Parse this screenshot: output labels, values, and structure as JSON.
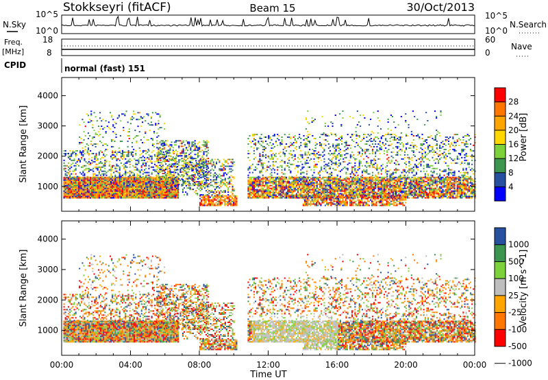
{
  "header": {
    "station": "Stokkseyri (fitACF)",
    "beam": "Beam 15",
    "date": "30/Oct/2013"
  },
  "top_panels": {
    "nsky": {
      "label": "N.Sky",
      "ticks": [
        "10^5",
        "10^0"
      ],
      "right_ticks": [
        "10^5",
        "10^0"
      ],
      "right_label": "N.Search"
    },
    "freq": {
      "label_line1": "Freq.",
      "label_line2": "[MHz]",
      "ticks": [
        "18",
        "8"
      ],
      "right_ticks": [
        "60",
        "0"
      ],
      "right_label": "Nave"
    },
    "cpid": {
      "label": "CPID",
      "value": "normal (fast) 151"
    }
  },
  "chart_data": [
    {
      "type": "heatmap",
      "panel": "power",
      "ylabel": "Slant Range [km]",
      "yticks": [
        "1000",
        "2000",
        "3000",
        "4000"
      ],
      "ylim": [
        180,
        4600
      ],
      "xlim_hours": [
        0,
        24
      ],
      "xticks": [
        "00:00",
        "04:00",
        "08:00",
        "12:00",
        "16:00",
        "20:00",
        "00:00"
      ],
      "colorbar_label": "Power [dB]",
      "colorbar_ticks": [
        "28",
        "24",
        "20",
        "16",
        "12",
        "8",
        "4"
      ],
      "colorbar_colors": [
        "#ff0000",
        "#ff7700",
        "#ffa500",
        "#ffd700",
        "#7dd23c",
        "#3c9650",
        "#2850a0",
        "#0000ff"
      ],
      "scatter_regions": [
        {
          "t": [
            0.1,
            6.8
          ],
          "r": [
            350,
            2200
          ],
          "level": "mid-high"
        },
        {
          "t": [
            4.5,
            10.2
          ],
          "r": [
            350,
            3500
          ],
          "level": "mid"
        },
        {
          "t": [
            10.6,
            24.0
          ],
          "r": [
            350,
            2700
          ],
          "level": "mid-high"
        }
      ]
    },
    {
      "type": "heatmap",
      "panel": "velocity",
      "ylabel": "Slant Range [km]",
      "yticks": [
        "1000",
        "2000",
        "3000",
        "4000"
      ],
      "ylim": [
        180,
        4600
      ],
      "xlim_hours": [
        0,
        24
      ],
      "xticks": [
        "00:00",
        "04:00",
        "08:00",
        "12:00",
        "16:00",
        "20:00",
        "00:00"
      ],
      "xlabel": "Time UT",
      "colorbar_label": "Velocity [m s^-1]",
      "colorbar_ticks": [
        "1000",
        "500",
        "100",
        "25",
        "-25",
        "-100",
        "-500",
        "-1000"
      ],
      "colorbar_colors": [
        "#2850a0",
        "#3c9650",
        "#7dd23c",
        "#bebebe",
        "#ffa500",
        "#ff7700",
        "#ff0000"
      ]
    }
  ]
}
